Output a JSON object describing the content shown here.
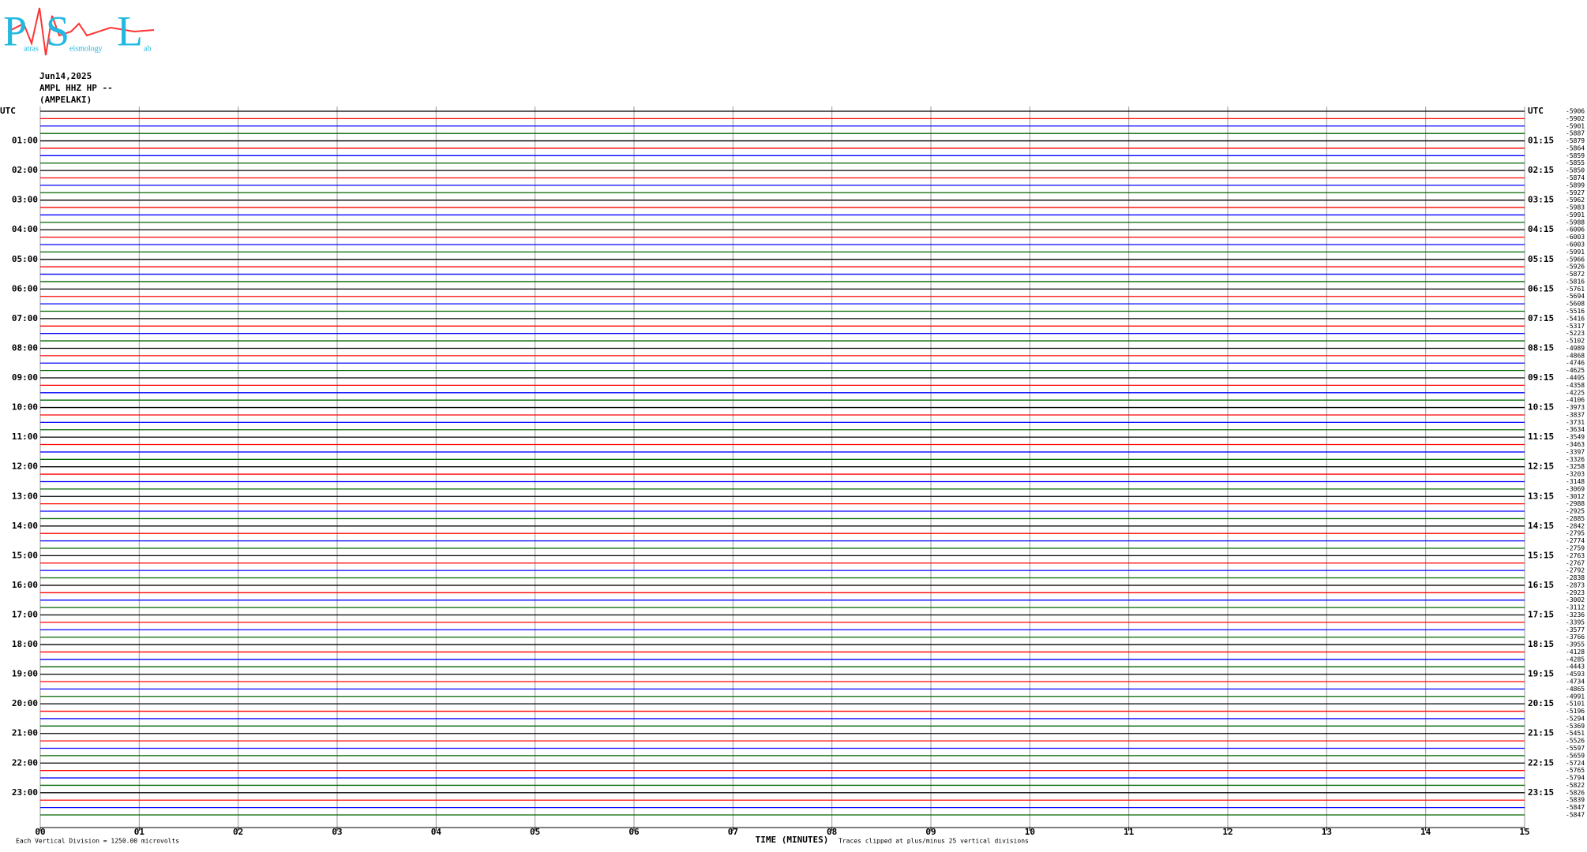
{
  "logo": {
    "letters": [
      "P",
      "S",
      "L"
    ],
    "words": [
      "atras",
      "eismology",
      "ab"
    ]
  },
  "header": {
    "date": "Jun14,2025",
    "station": "AMPL HHZ HP --",
    "site": "(AMPELAKI)"
  },
  "chart_data": {
    "type": "helicorder",
    "trace_colors": [
      "#000000",
      "#ff0000",
      "#0000ff",
      "#006400"
    ],
    "left_labels": [
      "UTC",
      "01:00",
      "02:00",
      "03:00",
      "04:00",
      "05:00",
      "06:00",
      "07:00",
      "08:00",
      "09:00",
      "10:00",
      "11:00",
      "12:00",
      "13:00",
      "14:00",
      "15:00",
      "16:00",
      "17:00",
      "18:00",
      "19:00",
      "20:00",
      "21:00",
      "22:00",
      "23:00"
    ],
    "right_labels": [
      "UTC",
      "01:15",
      "02:15",
      "03:15",
      "04:15",
      "05:15",
      "06:15",
      "07:15",
      "08:15",
      "09:15",
      "10:15",
      "11:15",
      "12:15",
      "13:15",
      "14:15",
      "15:15",
      "16:15",
      "17:15",
      "18:15",
      "19:15",
      "20:15",
      "21:15",
      "22:15",
      "23:15"
    ],
    "offsets": [
      -5906,
      -5902,
      -5901,
      -5887,
      -5879,
      -5864,
      -5859,
      -5855,
      -5850,
      -5874,
      -5899,
      -5927,
      -5962,
      -5983,
      -5991,
      -5988,
      -6006,
      -6003,
      -6003,
      -5991,
      -5966,
      -5926,
      -5872,
      -5816,
      -5761,
      -5694,
      -5608,
      -5516,
      -5416,
      -5317,
      -5223,
      -5102,
      -4989,
      -4868,
      -4746,
      -4625,
      -4495,
      -4358,
      -4225,
      -4106,
      -3973,
      -3837,
      -3731,
      -3634,
      -3549,
      -3463,
      -3397,
      -3326,
      -3258,
      -3203,
      -3148,
      -3069,
      -3012,
      -2988,
      -2925,
      -2885,
      -2842,
      -2795,
      -2774,
      -2759,
      -2763,
      -2767,
      -2792,
      -2838,
      -2873,
      -2923,
      -3002,
      -3112,
      -3236,
      -3395,
      -3577,
      -3766,
      -3955,
      -4128,
      -4285,
      -4443,
      -4593,
      -4734,
      -4865,
      -4991,
      -5101,
      -5196,
      -5294,
      -5369,
      -5451,
      -5526,
      -5597,
      -5659,
      -5724,
      -5765,
      -5794,
      -5822,
      -5826,
      -5839,
      -5847,
      -5847
    ],
    "xlim": [
      0,
      15
    ],
    "xticks": [
      {
        "value": 0,
        "label": "00"
      },
      {
        "value": 1,
        "label": "01"
      },
      {
        "value": 2,
        "label": "02"
      },
      {
        "value": 3,
        "label": "03"
      },
      {
        "value": 4,
        "label": "04"
      },
      {
        "value": 5,
        "label": "05"
      },
      {
        "value": 6,
        "label": "06"
      },
      {
        "value": 7,
        "label": "07"
      },
      {
        "value": 8,
        "label": "08"
      },
      {
        "value": 9,
        "label": "09"
      },
      10,
      11,
      12,
      13,
      14,
      15
    ],
    "x_label": "TIME (MINUTES)",
    "scale_note": "Each Vertical Division = 1250.00 microvolts",
    "clip_note": "Traces clipped at plus/minus 25 vertical divisions",
    "grid": true
  }
}
